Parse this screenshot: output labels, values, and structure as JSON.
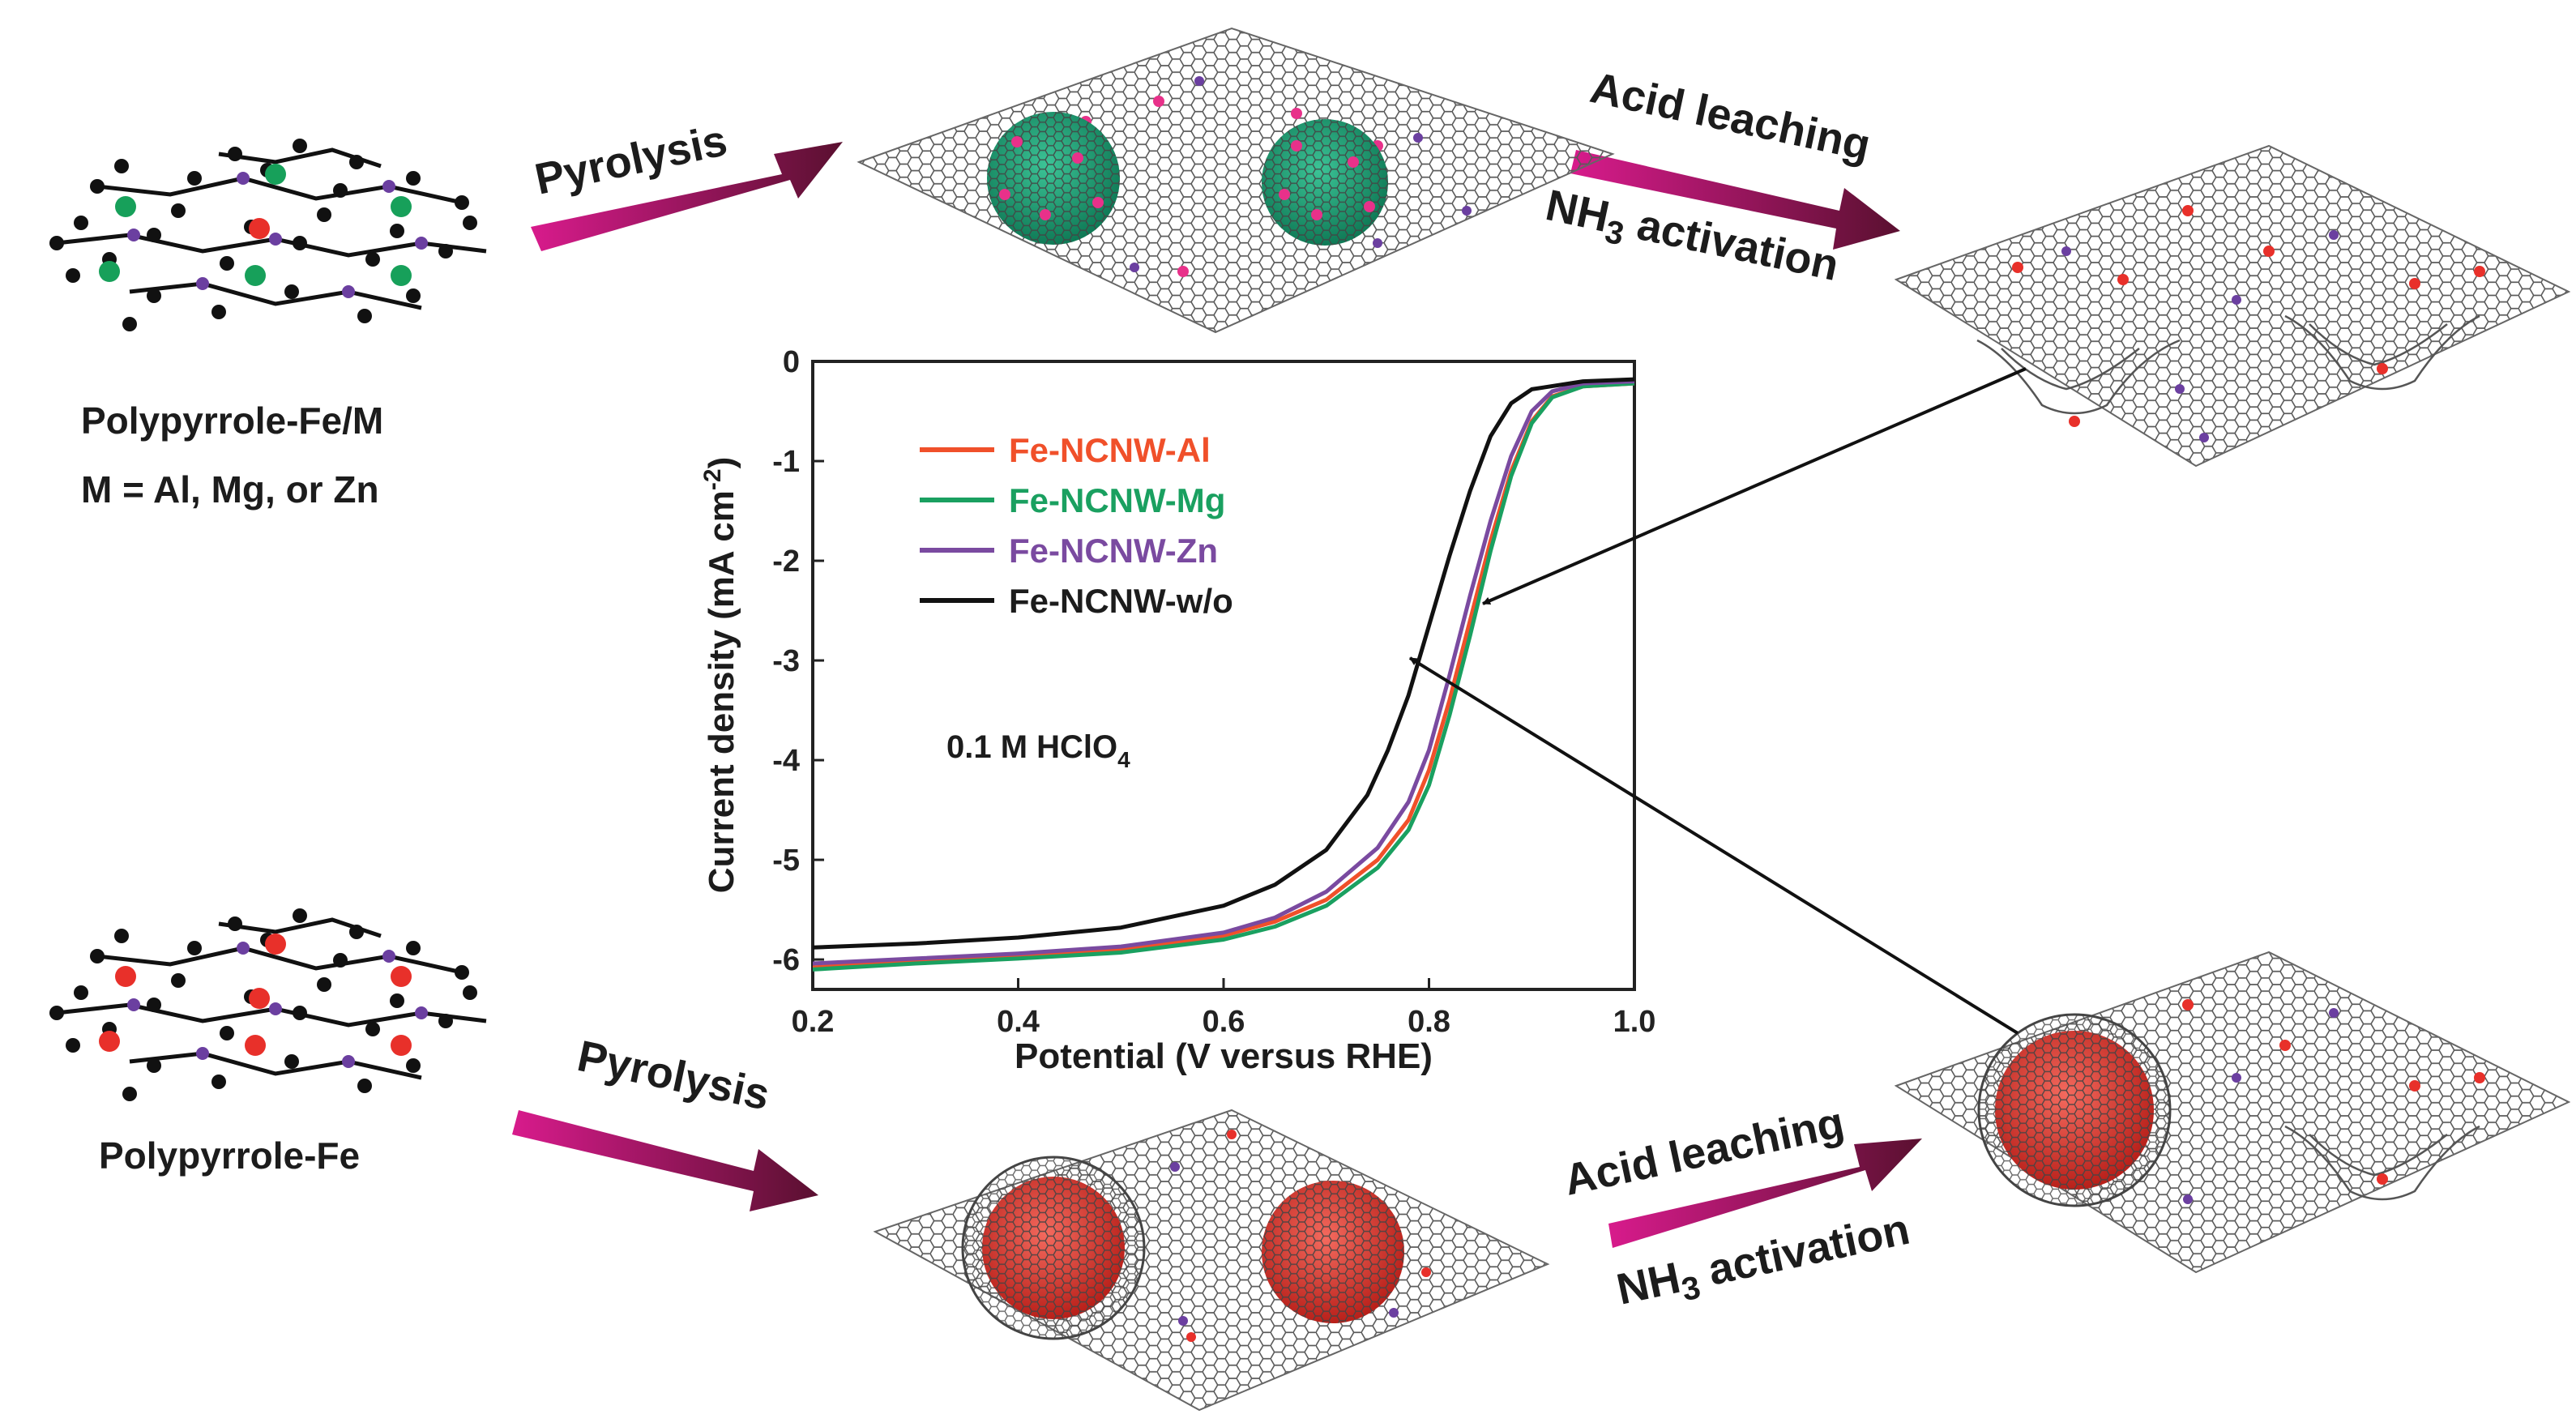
{
  "labels": {
    "precursor_top": "Polypyrrole-Fe/M",
    "precursor_top_sub": "M = Al, Mg, or Zn",
    "precursor_bottom": "Polypyrrole-Fe",
    "pyrolysis_top": "Pyrolysis",
    "pyrolysis_bottom": "Pyrolysis",
    "acid_top": "Acid leaching",
    "nh3_top_a": "NH",
    "nh3_top_b": "3",
    "nh3_top_c": " activation",
    "acid_bottom": "Acid leaching",
    "nh3_bottom_a": "NH",
    "nh3_bottom_b": "3",
    "nh3_bottom_c": " activation"
  },
  "colors": {
    "arrow_start": "#d81b8c",
    "arrow_end": "#5a1030",
    "cage_green": "#1aa37a",
    "cage_red": "#e0342c",
    "dot_pink": "#e8318a",
    "dot_red": "#e8302a",
    "dot_purple": "#6b3fa0",
    "sheet": "#555555"
  },
  "chart_data": {
    "type": "line",
    "xlabel": "Potential (V versus RHE)",
    "ylabel_a": "Current density (mA cm",
    "ylabel_sup": "-2",
    "ylabel_b": ")",
    "annotation_a": "0.1 M HClO",
    "annotation_sub": "4",
    "xlim": [
      0.2,
      1.0
    ],
    "ylim": [
      -6.3,
      0
    ],
    "xticks": [
      0.2,
      0.4,
      0.6,
      0.8,
      1.0
    ],
    "xtick_labels": [
      "0.2",
      "0.4",
      "0.6",
      "0.8",
      "1.0"
    ],
    "yticks": [
      0,
      -1,
      -2,
      -3,
      -4,
      -5,
      -6
    ],
    "ytick_labels": [
      "0",
      "-1",
      "-2",
      "-3",
      "-4",
      "-5",
      "-6"
    ],
    "series": [
      {
        "name": "Fe-NCNW-Al",
        "color": "#f0502a",
        "x": [
          0.2,
          0.3,
          0.4,
          0.5,
          0.6,
          0.65,
          0.7,
          0.75,
          0.78,
          0.8,
          0.82,
          0.84,
          0.86,
          0.88,
          0.9,
          0.92,
          0.95,
          1.0
        ],
        "y": [
          -6.08,
          -6.02,
          -5.97,
          -5.9,
          -5.76,
          -5.62,
          -5.4,
          -5.0,
          -4.6,
          -4.1,
          -3.4,
          -2.6,
          -1.8,
          -1.1,
          -0.6,
          -0.35,
          -0.25,
          -0.22
        ]
      },
      {
        "name": "Fe-NCNW-Mg",
        "color": "#1aa060",
        "x": [
          0.2,
          0.3,
          0.4,
          0.5,
          0.6,
          0.65,
          0.7,
          0.75,
          0.78,
          0.8,
          0.82,
          0.84,
          0.86,
          0.88,
          0.9,
          0.92,
          0.95,
          1.0
        ],
        "y": [
          -6.1,
          -6.04,
          -5.99,
          -5.93,
          -5.8,
          -5.67,
          -5.46,
          -5.08,
          -4.7,
          -4.25,
          -3.55,
          -2.75,
          -1.9,
          -1.15,
          -0.62,
          -0.36,
          -0.25,
          -0.22
        ]
      },
      {
        "name": "Fe-NCNW-Zn",
        "color": "#7a4aa0",
        "x": [
          0.2,
          0.3,
          0.4,
          0.5,
          0.6,
          0.65,
          0.7,
          0.75,
          0.78,
          0.8,
          0.82,
          0.84,
          0.86,
          0.88,
          0.9,
          0.92,
          0.95,
          1.0
        ],
        "y": [
          -6.04,
          -5.99,
          -5.94,
          -5.87,
          -5.73,
          -5.58,
          -5.32,
          -4.88,
          -4.42,
          -3.9,
          -3.15,
          -2.35,
          -1.6,
          -0.95,
          -0.5,
          -0.3,
          -0.22,
          -0.2
        ]
      },
      {
        "name": "Fe-NCNW-w/o",
        "color": "#111111",
        "x": [
          0.2,
          0.3,
          0.4,
          0.5,
          0.6,
          0.65,
          0.7,
          0.74,
          0.76,
          0.78,
          0.8,
          0.82,
          0.84,
          0.86,
          0.88,
          0.9,
          0.95,
          1.0
        ],
        "y": [
          -5.88,
          -5.84,
          -5.78,
          -5.68,
          -5.46,
          -5.25,
          -4.9,
          -4.35,
          -3.9,
          -3.35,
          -2.65,
          -1.95,
          -1.3,
          -0.75,
          -0.42,
          -0.28,
          -0.2,
          -0.18
        ]
      }
    ]
  }
}
